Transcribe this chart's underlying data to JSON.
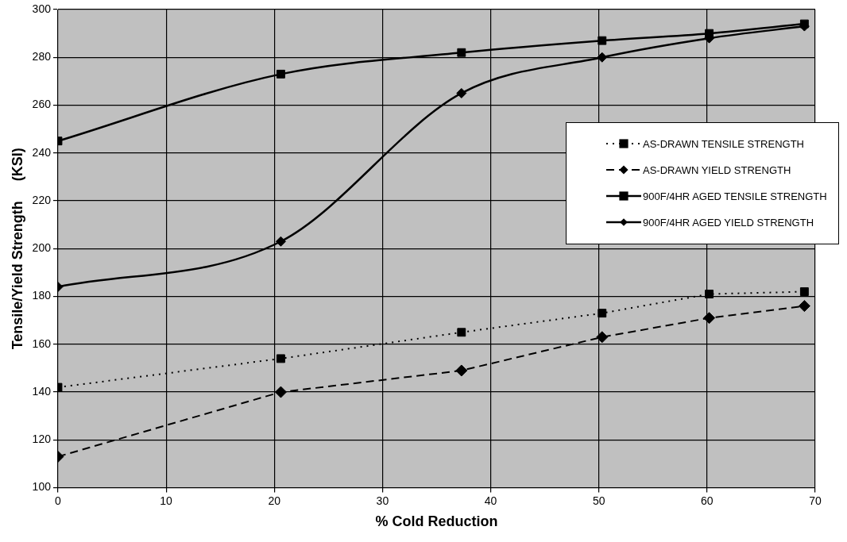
{
  "chart_data": {
    "type": "line",
    "xlabel": "% Cold Reduction",
    "ylabel": "Tensile/Yield Strength     (KSI)",
    "x": [
      0,
      20.6,
      37.3,
      50.3,
      60.2,
      69
    ],
    "xlim": [
      0,
      70
    ],
    "xticks": [
      0,
      10,
      20,
      30,
      40,
      50,
      60,
      70
    ],
    "ylim": [
      100,
      300
    ],
    "yticks": [
      100,
      120,
      140,
      160,
      180,
      200,
      220,
      240,
      260,
      280,
      300
    ],
    "grid": true,
    "legend": "right",
    "series": [
      {
        "name": "AS-DRAWN TENSILE STRENGTH",
        "color": "#000000",
        "marker": "square",
        "line_style": "dotted",
        "values": [
          142,
          154,
          165,
          173,
          181,
          182
        ]
      },
      {
        "name": "AS-DRAWN YIELD STRENGTH",
        "color": "#000000",
        "marker": "diamond",
        "line_style": "dashed",
        "values": [
          113,
          140,
          149,
          163,
          171,
          176
        ]
      },
      {
        "name": "900F/4HR AGED TENSILE STRENGTH",
        "color": "#000000",
        "marker": "square",
        "line_style": "solid",
        "values": [
          245,
          273,
          282,
          287,
          290,
          294
        ]
      },
      {
        "name": "900F/4HR AGED YIELD STRENGTH",
        "color": "#000000",
        "marker": "diamond",
        "line_style": "solid",
        "values": [
          184,
          203,
          265,
          280,
          288,
          293
        ]
      }
    ]
  }
}
